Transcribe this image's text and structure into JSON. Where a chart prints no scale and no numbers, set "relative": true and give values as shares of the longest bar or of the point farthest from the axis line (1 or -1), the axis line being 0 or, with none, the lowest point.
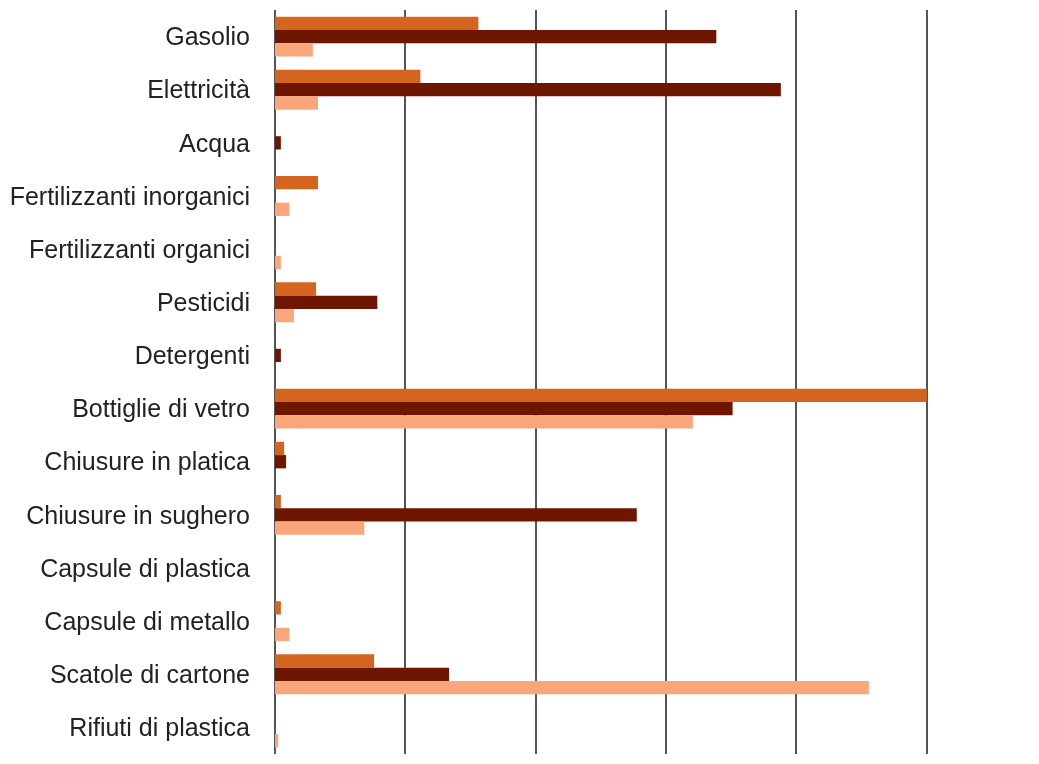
{
  "chart_data": {
    "type": "bar",
    "orientation": "horizontal",
    "relative": true,
    "grid": "x",
    "tick_labels": "y",
    "legend": false,
    "categories": [
      "Gasolio",
      "Elettricità",
      "Acqua",
      "Fertilizzanti inorganici",
      "Fertilizzanti organici",
      "Pesticidi",
      "Detergenti",
      "Bottiglie di vetro",
      "Chiusure in platica",
      "Chiusure in sughero",
      "Capsule di plastica",
      "Capsule di metallo",
      "Scatole di cartone",
      "Rifiuti di plastica"
    ],
    "series": [
      {
        "color": "#d4651f",
        "values": [
          0.312,
          0.223,
          null,
          0.066,
          null,
          0.063,
          null,
          1.0,
          0.014,
          0.009,
          null,
          0.009,
          0.152,
          null
        ]
      },
      {
        "color": "#6e1600",
        "values": [
          0.677,
          0.776,
          0.009,
          null,
          null,
          0.157,
          0.009,
          0.702,
          0.017,
          0.555,
          null,
          null,
          0.267,
          null
        ]
      },
      {
        "color": "#f9a77a",
        "values": [
          0.058,
          0.066,
          null,
          0.022,
          0.009,
          0.029,
          null,
          0.641,
          null,
          0.137,
          null,
          0.022,
          0.911,
          0.005
        ]
      }
    ]
  }
}
